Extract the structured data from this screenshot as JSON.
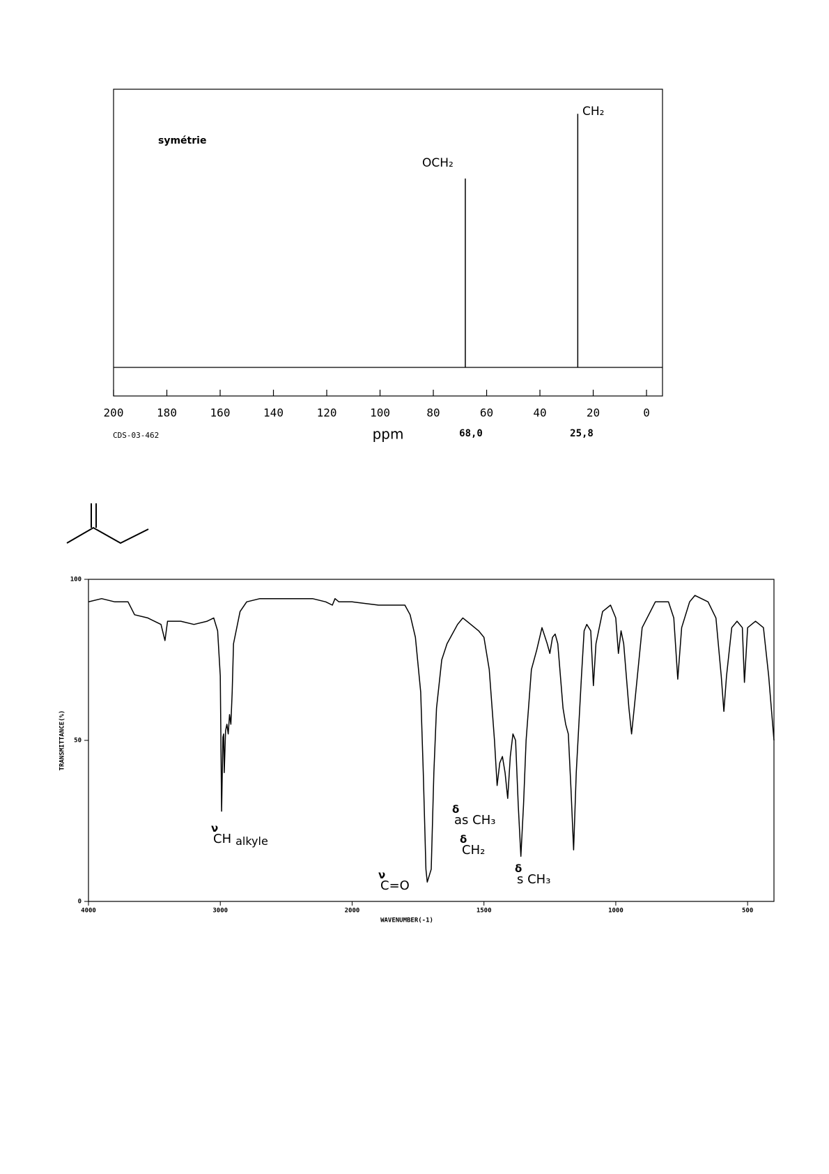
{
  "chart_data": [
    {
      "type": "stem",
      "x_label": "ppm",
      "id_label": "CDS-03-462",
      "annotations": [
        "symétrie",
        "OCH₂",
        "CH₂"
      ],
      "x": [
        68.0,
        25.8
      ],
      "x_labels": [
        "68,0",
        "25,8"
      ],
      "values": [
        70,
        94
      ],
      "ylim": [
        0,
        100
      ],
      "xlim": [
        200,
        -6
      ],
      "xticks": [
        200,
        180,
        160,
        140,
        120,
        100,
        80,
        60,
        40,
        20,
        0
      ],
      "color": "#000000"
    },
    {
      "type": "line",
      "x_label": "WAVENUMBER(-1)",
      "y_label": "TRANSMITTANCE(%)",
      "annotations": [
        {
          "symbol": "ν",
          "text": "CH",
          "sub": "alkyle"
        },
        {
          "symbol": "ν",
          "text": "C=O"
        },
        {
          "symbol": "δ",
          "text": "as CH₃"
        },
        {
          "symbol": "δ",
          "text": "CH₂"
        },
        {
          "symbol": "δ",
          "text": "s CH₃"
        }
      ],
      "xlim": [
        4000,
        400
      ],
      "x_scale_break": 2000,
      "x_scale_ratio": 2,
      "xticks": [
        4000,
        3000,
        2000,
        1500,
        1000,
        500
      ],
      "ylim": [
        0,
        100
      ],
      "yticks": [
        0,
        50,
        100
      ],
      "color": "#000000",
      "x": [
        4000,
        3900,
        3800,
        3700,
        3650,
        3550,
        3500,
        3450,
        3420,
        3400,
        3300,
        3200,
        3100,
        3050,
        3020,
        3000,
        2990,
        2980,
        2975,
        2970,
        2960,
        2950,
        2940,
        2930,
        2920,
        2910,
        2900,
        2850,
        2800,
        2700,
        2600,
        2500,
        2400,
        2300,
        2200,
        2150,
        2130,
        2100,
        2000,
        1900,
        1800,
        1780,
        1760,
        1740,
        1730,
        1720,
        1715,
        1700,
        1690,
        1680,
        1660,
        1640,
        1600,
        1580,
        1550,
        1520,
        1500,
        1480,
        1460,
        1450,
        1440,
        1430,
        1420,
        1410,
        1400,
        1390,
        1380,
        1370,
        1360,
        1350,
        1340,
        1320,
        1300,
        1280,
        1260,
        1250,
        1240,
        1230,
        1220,
        1200,
        1190,
        1180,
        1170,
        1160,
        1150,
        1130,
        1120,
        1110,
        1095,
        1085,
        1075,
        1050,
        1020,
        1000,
        990,
        980,
        970,
        950,
        940,
        930,
        900,
        850,
        800,
        780,
        765,
        750,
        720,
        700,
        650,
        620,
        600,
        590,
        580,
        560,
        540,
        520,
        512,
        500,
        470,
        440,
        420,
        400
      ],
      "values": [
        93,
        94,
        93,
        93,
        89,
        88,
        87,
        86,
        81,
        87,
        87,
        86,
        87,
        88,
        84,
        70,
        28,
        51,
        52,
        40,
        53,
        55,
        52,
        58,
        55,
        65,
        80,
        90,
        93,
        94,
        94,
        94,
        94,
        94,
        93,
        92,
        94,
        93,
        93,
        92,
        92,
        89,
        82,
        65,
        40,
        10,
        6,
        10,
        40,
        60,
        75,
        80,
        86,
        88,
        86,
        84,
        82,
        72,
        50,
        36,
        43,
        45,
        40,
        32,
        45,
        52,
        50,
        30,
        14,
        30,
        50,
        72,
        78,
        85,
        80,
        77,
        82,
        83,
        80,
        60,
        55,
        52,
        35,
        16,
        40,
        70,
        84,
        86,
        84,
        67,
        80,
        90,
        92,
        88,
        77,
        84,
        80,
        60,
        52,
        60,
        85,
        93,
        93,
        88,
        69,
        85,
        93,
        95,
        93,
        88,
        70,
        59,
        70,
        85,
        87,
        85,
        68,
        85,
        87,
        85,
        70,
        50
      ]
    }
  ]
}
